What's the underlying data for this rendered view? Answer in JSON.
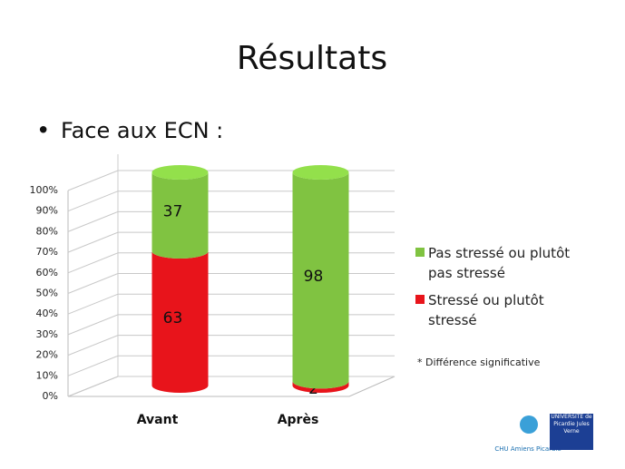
{
  "title": "Résultats",
  "bullet": "Face aux ECN :",
  "note": "* Différence significative",
  "logos": [
    "CHU Amiens Picardie",
    "UNIVERSITÉ de Picardie Jules Verne"
  ],
  "chart_data": {
    "type": "bar",
    "stacked": true,
    "categories": [
      "Avant",
      "Après"
    ],
    "series": [
      {
        "name": "Stressé ou plutôt stressé",
        "color": "#e8141b",
        "values": [
          63,
          2
        ]
      },
      {
        "name": "Pas stressé ou plutôt pas stressé",
        "color": "#80c341",
        "values": [
          37,
          98
        ]
      }
    ],
    "ylim": [
      0,
      100
    ],
    "yticks": [
      {
        "value": 0,
        "label": "0%"
      },
      {
        "value": 10,
        "label": "10%"
      },
      {
        "value": 20,
        "label": "20%"
      },
      {
        "value": 30,
        "label": "30%"
      },
      {
        "value": 40,
        "label": "40%"
      },
      {
        "value": 50,
        "label": "50%"
      },
      {
        "value": 60,
        "label": "60%"
      },
      {
        "value": 70,
        "label": "70%"
      },
      {
        "value": 80,
        "label": "80%"
      },
      {
        "value": 90,
        "label": "90%"
      },
      {
        "value": 100,
        "label": "100%"
      }
    ],
    "grid": true,
    "legend": "right"
  }
}
